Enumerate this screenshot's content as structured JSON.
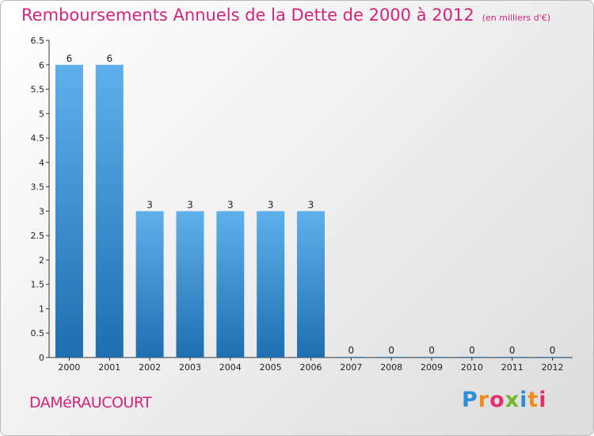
{
  "title": "Remboursements Annuels de la Dette de 2000 à 2012",
  "unit_note": "(en milliers d'€)",
  "commune": "DAMéRAUCOURT",
  "logo": {
    "text": "Proxiti",
    "colors": [
      "#2e8ed9",
      "#f08a1c",
      "#e03070",
      "#74b72e",
      "#2e8ed9",
      "#f08a1c",
      "#e03070"
    ]
  },
  "colors": {
    "bar_top": "#5fb0ea",
    "bar_bottom": "#1f6fb0",
    "axis": "#333333",
    "label": "#222222",
    "title": "#d4237b"
  },
  "chart_data": {
    "type": "bar",
    "categories": [
      "2000",
      "2001",
      "2002",
      "2003",
      "2004",
      "2005",
      "2006",
      "2007",
      "2008",
      "2009",
      "2010",
      "2011",
      "2012"
    ],
    "values": [
      6,
      6,
      3,
      3,
      3,
      3,
      3,
      0,
      0,
      0,
      0,
      0,
      0
    ],
    "data_labels": [
      "6",
      "6",
      "3",
      "3",
      "3",
      "3",
      "3",
      "0",
      "0",
      "0",
      "0",
      "0",
      "0"
    ],
    "ylim": [
      0,
      6.5
    ],
    "y_ticks": [
      "0",
      "0.5",
      "1",
      "1.5",
      "2",
      "2.5",
      "3",
      "3.5",
      "4",
      "4.5",
      "5",
      "5.5",
      "6",
      "6.5"
    ],
    "grid": false
  }
}
